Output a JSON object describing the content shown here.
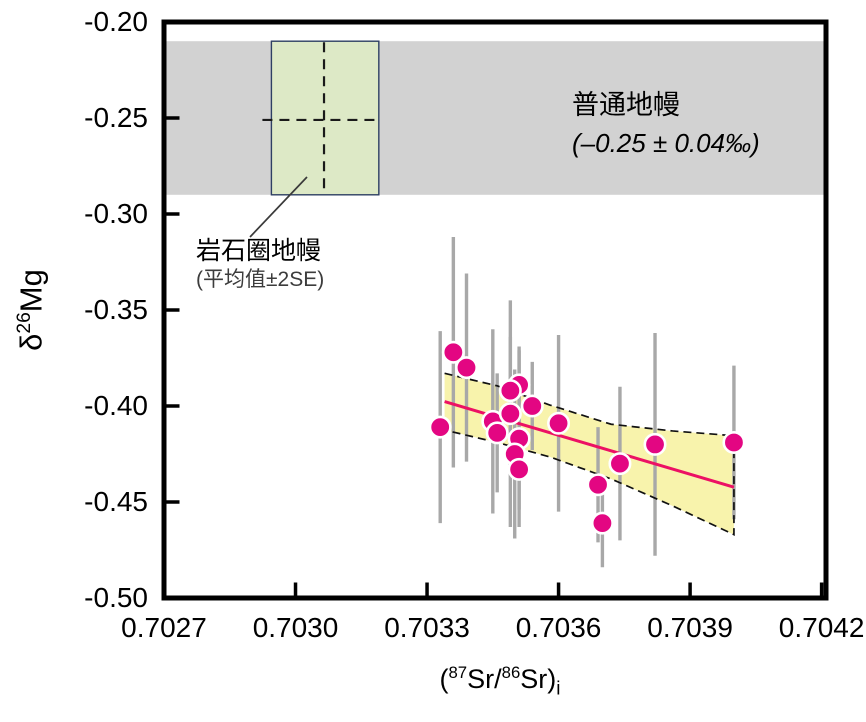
{
  "figure": {
    "y_axis": {
      "title_delta": "δ",
      "title_sup": "26",
      "title_element": "Mg",
      "ticks": [
        "-0.20",
        "-0.25",
        "-0.30",
        "-0.35",
        "-0.40",
        "-0.45",
        "-0.50"
      ]
    },
    "x_axis": {
      "title_open": "(",
      "title_sup1": "87",
      "title_mid": "Sr/",
      "title_sup2": "86",
      "title_close": "Sr)",
      "title_sub": "i",
      "ticks": [
        "0.7027",
        "0.7030",
        "0.7033",
        "0.7036",
        "0.7039",
        "0.7042"
      ]
    },
    "annotations": {
      "normal_mantle": {
        "line1": "普通地幔",
        "line2": "(–0.25 ± 0.04‰)"
      },
      "lithospheric_mantle": {
        "line1": "岩石圈地幔",
        "line2": "(平均值±2SE)"
      }
    }
  },
  "chart_data": {
    "type": "scatter",
    "x_label": "(87Sr/86Sr)i",
    "y_label": "δ26Mg",
    "x_range": [
      0.7027,
      0.70421
    ],
    "y_range": [
      -0.5,
      -0.2
    ],
    "x_ticks": [
      0.7027,
      0.703,
      0.7033,
      0.7036,
      0.7039,
      0.7042
    ],
    "y_ticks": [
      -0.2,
      -0.25,
      -0.3,
      -0.35,
      -0.4,
      -0.45,
      -0.5
    ],
    "grid": false,
    "normal_mantle_band": {
      "label": "普通地幔",
      "value": "-0.25 ± 0.04‰",
      "y_top": -0.21,
      "y_bottom": -0.29,
      "color": "#d2d2d2"
    },
    "lithospheric_mantle_box": {
      "label": "岩石圈地幔 (平均值±2SE)",
      "x_min": 0.702945,
      "x_max": 0.70319,
      "y_top": -0.21,
      "y_bottom": -0.29,
      "mean_x": 0.703065,
      "mean_y": -0.251,
      "fill": "#dde9c6",
      "border": "#2e3f63",
      "crosshair_color": "#1a1a1a",
      "leader_line_color": "#3a3a3a"
    },
    "points": [
      {
        "x": 0.70333,
        "y": -0.411,
        "err": 0.05
      },
      {
        "x": 0.70336,
        "y": -0.372,
        "err": 0.06
      },
      {
        "x": 0.70339,
        "y": -0.38,
        "err": 0.049
      },
      {
        "x": 0.70345,
        "y": -0.408,
        "err": 0.048
      },
      {
        "x": 0.70346,
        "y": -0.414,
        "err": 0.031
      },
      {
        "x": 0.70351,
        "y": -0.389,
        "err": 0.02
      },
      {
        "x": 0.70349,
        "y": -0.392,
        "err": 0.028
      },
      {
        "x": 0.70349,
        "y": -0.404,
        "err": 0.059
      },
      {
        "x": 0.70351,
        "y": -0.417,
        "err": 0.046
      },
      {
        "x": 0.7035,
        "y": -0.425,
        "err": 0.044
      },
      {
        "x": 0.70351,
        "y": -0.433,
        "err": 0.021
      },
      {
        "x": 0.70354,
        "y": -0.4,
        "err": 0.023
      },
      {
        "x": 0.7036,
        "y": -0.409,
        "err": 0.046
      },
      {
        "x": 0.70369,
        "y": -0.441,
        "err": 0.03
      },
      {
        "x": 0.7037,
        "y": -0.461,
        "err": 0.023
      },
      {
        "x": 0.70374,
        "y": -0.43,
        "err": 0.04
      },
      {
        "x": 0.70382,
        "y": -0.42,
        "err": 0.058
      },
      {
        "x": 0.704,
        "y": -0.419,
        "err": 0.04
      }
    ],
    "regression_line": {
      "x1": 0.70334,
      "y1": -0.3977,
      "x2": 0.704,
      "y2": -0.4423,
      "color": "#ec1164"
    },
    "confidence_band": {
      "fill": "#f8f3ac",
      "edge_color": "#111111",
      "upper": [
        [
          0.70334,
          -0.383
        ],
        [
          0.70346,
          -0.3895
        ],
        [
          0.70358,
          -0.3995
        ],
        [
          0.70372,
          -0.4095
        ],
        [
          0.70386,
          -0.413
        ],
        [
          0.704,
          -0.4155
        ]
      ],
      "lower": [
        [
          0.70334,
          -0.4125
        ],
        [
          0.70346,
          -0.419
        ],
        [
          0.70358,
          -0.4265
        ],
        [
          0.70372,
          -0.438
        ],
        [
          0.70386,
          -0.452
        ],
        [
          0.704,
          -0.467
        ]
      ]
    },
    "error_bar_color": "#a8a8a8",
    "point_fill": "#e30682",
    "point_stroke": "#ffffff",
    "axis_color": "#000000"
  }
}
